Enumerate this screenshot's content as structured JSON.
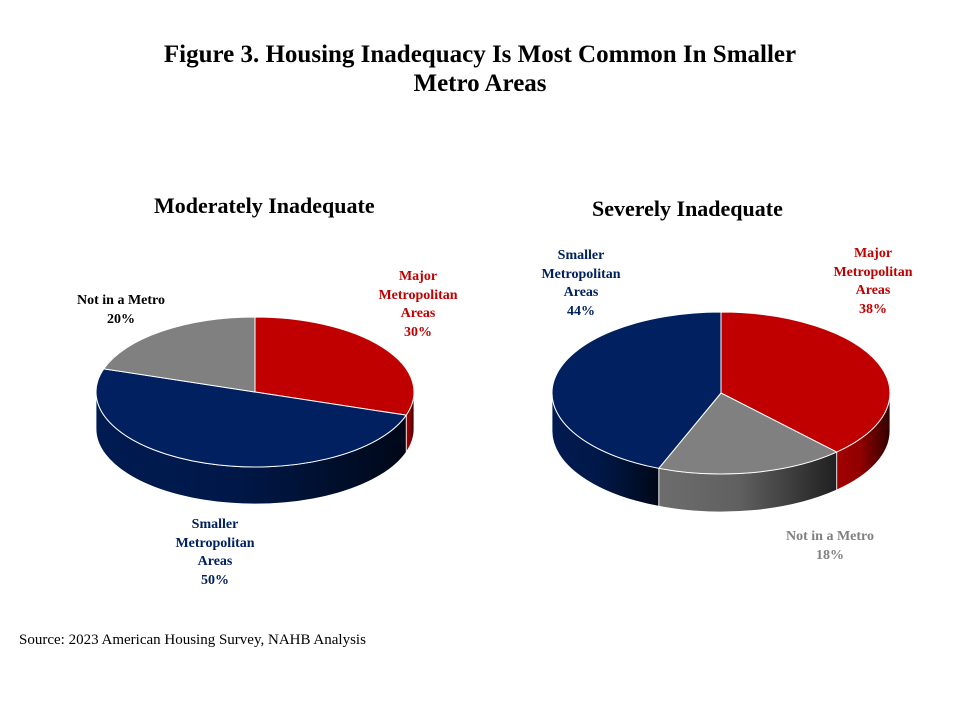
{
  "title": [
    "Figure 3. Housing Inadequacy Is Most Common In Smaller",
    "Metro Areas"
  ],
  "source": "Source: 2023 American Housing Survey, NAHB Analysis",
  "colors": {
    "major": "#C00000",
    "smaller": "#002060",
    "not_metro": "#808080"
  },
  "chart_data": [
    {
      "type": "pie",
      "title": "Moderately Inadequate",
      "slices": [
        {
          "name": "Major Metropolitan Areas",
          "label_lines": [
            "Major",
            "Metropolitan",
            "Areas",
            "30%"
          ],
          "value": 30,
          "color": "#C00000"
        },
        {
          "name": "Smaller Metropolitan Areas",
          "label_lines": [
            "Smaller",
            "Metropolitan",
            "Areas",
            "50%"
          ],
          "value": 50,
          "color": "#002060"
        },
        {
          "name": "Not in a Metro",
          "label_lines": [
            "Not in a Metro",
            "20%"
          ],
          "value": 20,
          "color": "#808080"
        }
      ]
    },
    {
      "type": "pie",
      "title": "Severely Inadequate",
      "slices": [
        {
          "name": "Major Metropolitan Areas",
          "label_lines": [
            "Major",
            "Metropolitan",
            "Areas",
            "38%"
          ],
          "value": 38,
          "color": "#C00000"
        },
        {
          "name": "Not in a Metro",
          "label_lines": [
            "Not in a Metro",
            "18%"
          ],
          "value": 18,
          "color": "#808080"
        },
        {
          "name": "Smaller Metropolitan Areas",
          "label_lines": [
            "Smaller",
            "Metropolitan",
            "Areas",
            "44%"
          ],
          "value": 44,
          "color": "#002060"
        }
      ]
    }
  ]
}
